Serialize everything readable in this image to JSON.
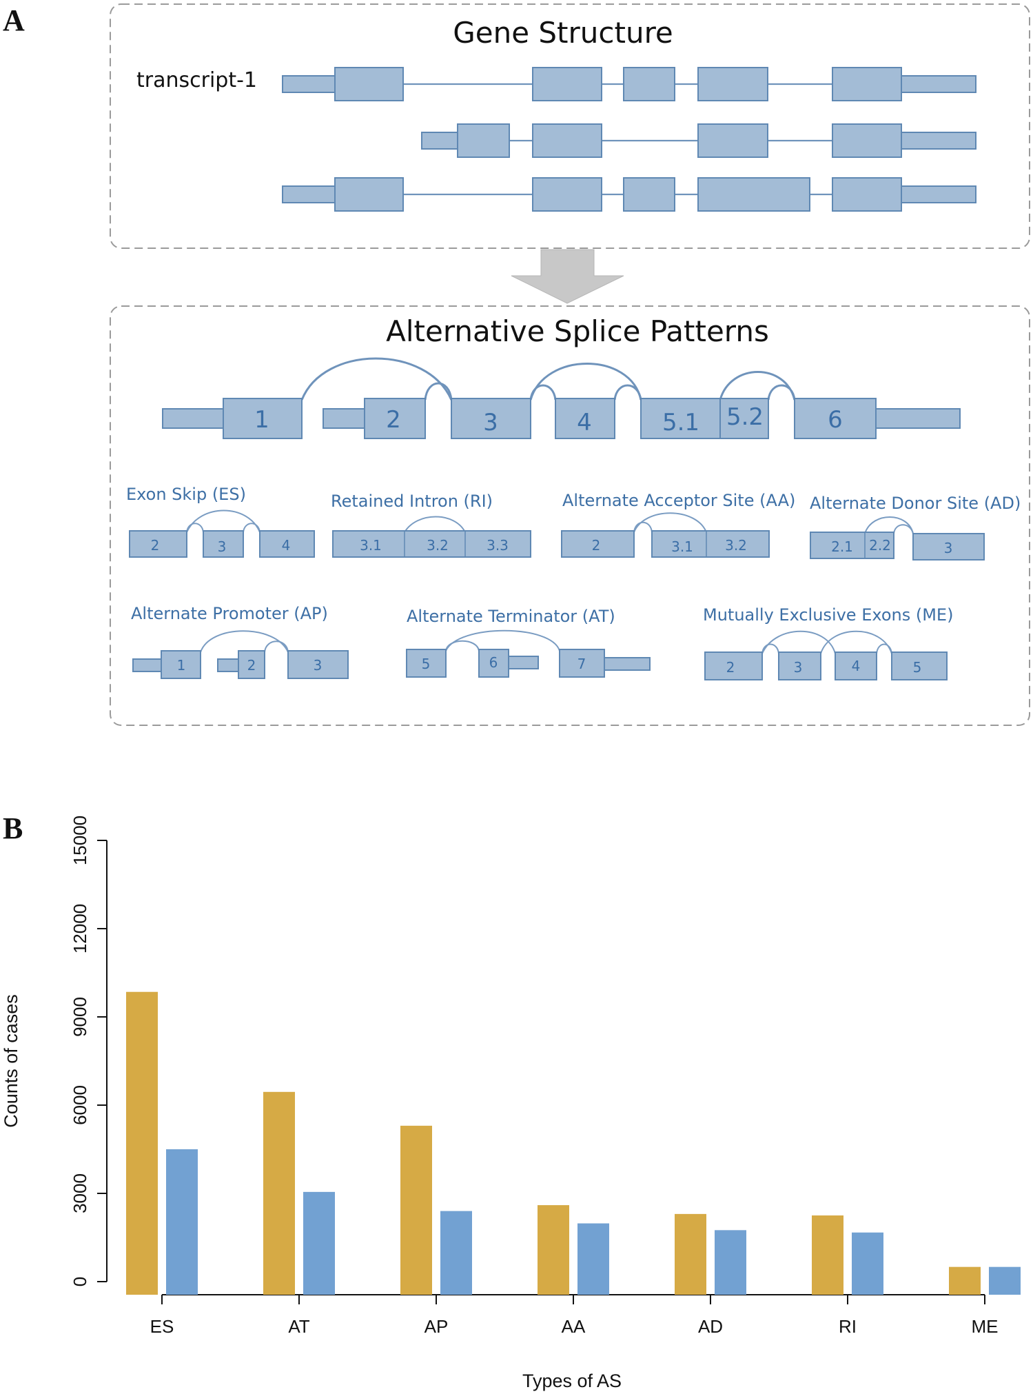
{
  "panel_a": {
    "letter": "A",
    "gene_structure_title": "Gene Structure",
    "transcript_label": "transcript-1",
    "splice_title": "Alternative Splice Patterns",
    "exon_labels": [
      "1",
      "2",
      "3",
      "4",
      "5.1",
      "5.2",
      "6"
    ],
    "patterns": {
      "es": {
        "name": "Exon Skip (ES)",
        "exons": [
          "2",
          "3",
          "4"
        ]
      },
      "ri": {
        "name": "Retained Intron (RI)",
        "exons": [
          "3.1",
          "3.2",
          "3.3"
        ]
      },
      "aa": {
        "name": "Alternate Acceptor Site (AA)",
        "exons": [
          "2",
          "3.1",
          "3.2"
        ]
      },
      "ad": {
        "name": "Alternate Donor Site (AD)",
        "exons": [
          "2.1",
          "2.2",
          "3"
        ]
      },
      "ap": {
        "name": "Alternate Promoter (AP)",
        "exons": [
          "1",
          "2",
          "3"
        ]
      },
      "at": {
        "name": "Alternate Terminator (AT)",
        "exons": [
          "5",
          "6",
          "7"
        ]
      },
      "me": {
        "name": "Mutually Exclusive Exons (ME)",
        "exons": [
          "2",
          "3",
          "4",
          "5"
        ]
      }
    },
    "colors": {
      "exon_fill": "#a3bcd6",
      "exon_stroke": "#5f88b3",
      "arrow": "#c8c8c8"
    }
  },
  "panel_b": {
    "letter": "B",
    "chart_data": {
      "type": "bar",
      "categories": [
        "ES",
        "AT",
        "AP",
        "AA",
        "AD",
        "RI",
        "ME"
      ],
      "series": [
        {
          "values": [
            9850,
            6450,
            5300,
            2600,
            2300,
            2250,
            500
          ],
          "color": "#d6aa45"
        },
        {
          "values": [
            4500,
            3050,
            2400,
            1980,
            1750,
            1670,
            500
          ],
          "color": "#72a1d2"
        }
      ],
      "xlabel": "Types of AS",
      "ylabel": "Counts of cases",
      "ylim": [
        0,
        15000
      ],
      "yticks": [
        0,
        3000,
        6000,
        9000,
        12000,
        15000
      ],
      "grid": false
    }
  }
}
